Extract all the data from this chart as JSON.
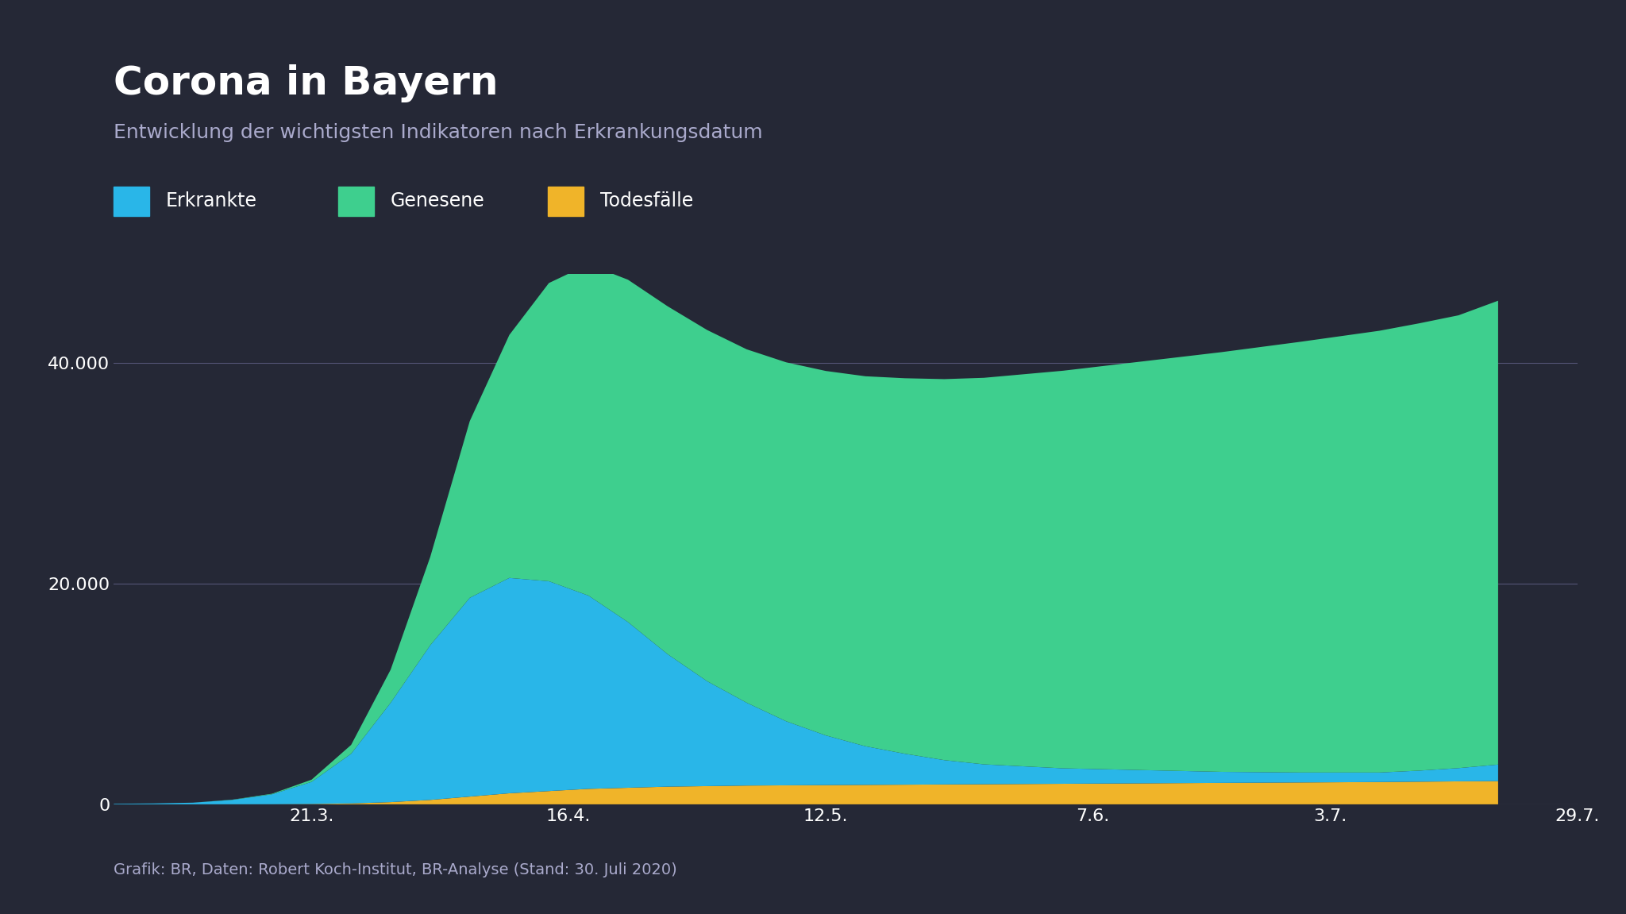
{
  "title": "Corona in Bayern",
  "subtitle": "Entwicklung der wichtigsten Indikatoren nach Erkrankungsdatum",
  "footer": "Grafik: BR, Daten: Robert Koch-Institut, BR-Analyse (Stand: 30. Juli 2020)",
  "bg_color": "#252836",
  "plot_bg_color": "#252836",
  "text_color_title": "#ffffff",
  "text_color_subtitle": "#aaaacc",
  "text_color_axis": "#ffffff",
  "text_color_footer": "#aaaacc",
  "grid_color": "#555577",
  "color_erkrankte": "#29b6e8",
  "color_genesene": "#3ecf8e",
  "color_todesfaelle": "#f0b429",
  "legend_labels": [
    "Erkrankte",
    "Genesene",
    "Todesfälle"
  ],
  "xtick_labels": [
    "21.3.",
    "16.4.",
    "12.5.",
    "7.6.",
    "3.7.",
    "29.7."
  ],
  "ytick_labels": [
    "0",
    "20.000",
    "40.000"
  ],
  "ytick_values": [
    0,
    20000,
    40000
  ],
  "dates_numeric": [
    0,
    4,
    8,
    12,
    16,
    20,
    24,
    28,
    32,
    36,
    40,
    44,
    48,
    52,
    56,
    60,
    64,
    68,
    72,
    76,
    80,
    84,
    88,
    92,
    96,
    100,
    104,
    108,
    112,
    116,
    120,
    124,
    128,
    132,
    136,
    140
  ],
  "xtick_positions": [
    20,
    46,
    72,
    99,
    123,
    148
  ],
  "data_erkrankte": [
    50,
    80,
    150,
    400,
    900,
    2000,
    4500,
    9000,
    14000,
    18000,
    19500,
    19000,
    17500,
    15000,
    12000,
    9500,
    7500,
    5800,
    4500,
    3500,
    2800,
    2200,
    1800,
    1600,
    1400,
    1300,
    1200,
    1100,
    1000,
    950,
    900,
    880,
    860,
    1000,
    1200,
    1500
  ],
  "data_genesene": [
    0,
    0,
    0,
    20,
    50,
    200,
    800,
    3000,
    8000,
    16000,
    22000,
    27000,
    30000,
    31000,
    31500,
    31800,
    32000,
    32500,
    33000,
    33500,
    34000,
    34500,
    35000,
    35500,
    36000,
    36500,
    37000,
    37500,
    38000,
    38500,
    39000,
    39500,
    40000,
    40500,
    41000,
    42000
  ],
  "data_todesfaelle": [
    0,
    0,
    0,
    5,
    10,
    30,
    80,
    200,
    400,
    700,
    1000,
    1200,
    1400,
    1500,
    1600,
    1650,
    1700,
    1720,
    1740,
    1760,
    1780,
    1800,
    1820,
    1840,
    1860,
    1880,
    1900,
    1920,
    1940,
    1960,
    1980,
    2000,
    2020,
    2050,
    2080,
    2100
  ]
}
